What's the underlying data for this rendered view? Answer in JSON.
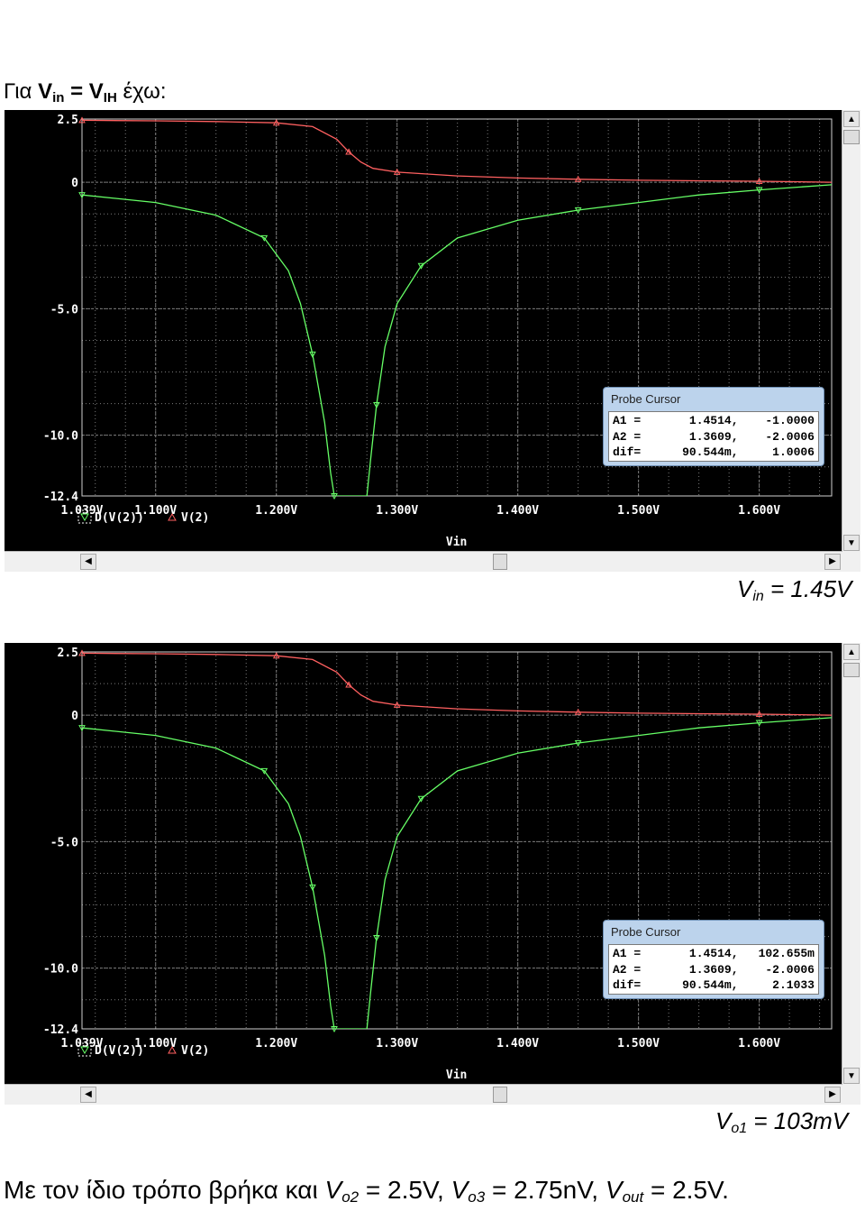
{
  "heading": {
    "prefix": "Για ",
    "v": "V",
    "in_sub": "in",
    "eq": " = ",
    "v2": "V",
    "ih_sub": "IH",
    "suffix": " έχω:"
  },
  "captions": [
    {
      "v": "V",
      "sub": "in",
      "rest": " = 1.45V"
    },
    {
      "v": "V",
      "sub": "o1",
      "rest": " = 103mV"
    }
  ],
  "footer": {
    "prefix": "Με τον ίδιο τρόπο βρήκα και ",
    "p1v": "V",
    "p1s": "o2",
    "p1r": " = 2.5V, ",
    "p2v": "V",
    "p2s": "o3",
    "p2r": " = 2.75nV, ",
    "p3v": "V",
    "p3s": "out",
    "p3r": " = 2.5V."
  },
  "colors": {
    "background": "#000000",
    "grid": "#7a7a7a",
    "axis_text": "#ffffff",
    "trace_d": "#66ff66",
    "trace_v": "#ff6060"
  },
  "plots": [
    {
      "probe": {
        "title": "Probe Cursor",
        "rows": [
          {
            "label": "A1 =",
            "x": "1.4514,",
            "y": "-1.0000"
          },
          {
            "label": "A2 =",
            "x": "1.3609,",
            "y": "-2.0006"
          },
          {
            "label": "dif=",
            "x": "90.544m,",
            "y": "1.0006"
          }
        ]
      }
    },
    {
      "probe": {
        "title": "Probe Cursor",
        "rows": [
          {
            "label": "A1 =",
            "x": "1.4514,",
            "y": "102.655m"
          },
          {
            "label": "A2 =",
            "x": "1.3609,",
            "y": "-2.0006"
          },
          {
            "label": "dif=",
            "x": "90.544m,",
            "y": "2.1033"
          }
        ]
      }
    }
  ],
  "chart_data": {
    "type": "line",
    "xlabel": "Vin",
    "xlim": [
      1.039,
      1.66
    ],
    "ylim": [
      -12.4,
      2.5
    ],
    "x_ticks": [
      "1.039V",
      "1.100V",
      "1.200V",
      "1.300V",
      "1.400V",
      "1.500V",
      "1.600V"
    ],
    "y_ticks": [
      "2.5",
      "0",
      "-5.0",
      "-10.0",
      "-12.4"
    ],
    "legend": [
      "D(V(2))",
      "V(2)"
    ],
    "series": [
      {
        "name": "V(2)",
        "x": [
          1.039,
          1.1,
          1.15,
          1.2,
          1.23,
          1.25,
          1.26,
          1.27,
          1.28,
          1.3,
          1.35,
          1.4,
          1.45,
          1.5,
          1.55,
          1.6,
          1.66
        ],
        "values": [
          2.45,
          2.43,
          2.4,
          2.35,
          2.2,
          1.7,
          1.2,
          0.8,
          0.55,
          0.4,
          0.25,
          0.17,
          0.12,
          0.08,
          0.06,
          0.04,
          0.0
        ]
      },
      {
        "name": "D(V(2))",
        "x": [
          1.039,
          1.1,
          1.15,
          1.19,
          1.21,
          1.22,
          1.23,
          1.24,
          1.245,
          1.248,
          1.275,
          1.278,
          1.283,
          1.29,
          1.3,
          1.32,
          1.35,
          1.4,
          1.45,
          1.5,
          1.55,
          1.6,
          1.66
        ],
        "values": [
          -0.5,
          -0.8,
          -1.3,
          -2.2,
          -3.5,
          -4.8,
          -6.8,
          -9.5,
          -11.5,
          -12.4,
          -12.4,
          -11.0,
          -8.8,
          -6.5,
          -4.8,
          -3.3,
          -2.2,
          -1.5,
          -1.1,
          -0.8,
          -0.5,
          -0.3,
          -0.1
        ]
      }
    ]
  }
}
